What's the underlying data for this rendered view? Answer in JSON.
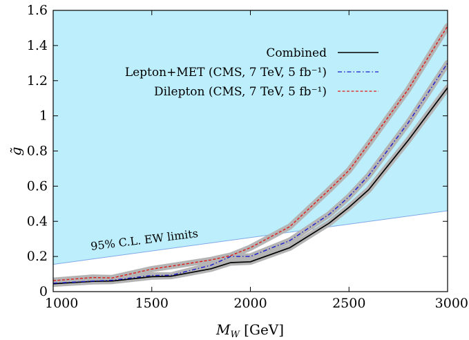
{
  "chart_data": {
    "type": "line",
    "xlabel_italic": "M",
    "xlabel_sub": "W",
    "xlabel_unit": " [GeV]",
    "ylabel": "g̃",
    "xlim": [
      1000,
      3000
    ],
    "ylim": [
      0,
      1.6
    ],
    "x_ticks": [
      1000,
      1500,
      2000,
      2500,
      3000
    ],
    "y_ticks": [
      0,
      0.2,
      0.4,
      0.6,
      0.8,
      1,
      1.2,
      1.4,
      1.6
    ],
    "x_tick_labels": [
      "1000",
      "1500",
      "2000",
      "2500",
      "3000"
    ],
    "y_tick_labels": [
      "0",
      "0.2",
      "0.4",
      "0.6",
      "0.8",
      "1",
      "1.2",
      "1.4",
      "1.6"
    ],
    "grid": false,
    "legend_position": "top-right",
    "excluded_region": {
      "label": "95% C.L. EW limits",
      "boundary_x": [
        1000,
        3000
      ],
      "boundary_y": [
        0.155,
        0.46
      ],
      "color": "#bdeefc"
    },
    "series": [
      {
        "name": "Combined",
        "color": "#000000",
        "dash": "solid",
        "x": [
          1000,
          1200,
          1300,
          1500,
          1600,
          1800,
          1900,
          2000,
          2200,
          2400,
          2500,
          2600,
          2800,
          3000
        ],
        "y": [
          0.045,
          0.058,
          0.06,
          0.085,
          0.088,
          0.13,
          0.165,
          0.17,
          0.25,
          0.39,
          0.48,
          0.58,
          0.86,
          1.16
        ]
      },
      {
        "name": "Lepton+MET (CMS, 7 TeV, 5 fb⁻¹)",
        "color": "#1a1ad0",
        "dash": "dashdot",
        "x": [
          1000,
          1200,
          1300,
          1500,
          1600,
          1800,
          1900,
          2000,
          2200,
          2400,
          2500,
          2600,
          2800,
          3000
        ],
        "y": [
          0.048,
          0.06,
          0.065,
          0.092,
          0.093,
          0.15,
          0.2,
          0.2,
          0.29,
          0.44,
          0.54,
          0.66,
          0.96,
          1.3
        ]
      },
      {
        "name": "Dilepton (CMS, 7 TeV, 5 fb⁻¹)",
        "color": "#e01818",
        "dash": "dashed",
        "x": [
          1000,
          1200,
          1300,
          1500,
          1600,
          1800,
          1900,
          2000,
          2200,
          2400,
          2500,
          2600,
          2800,
          3000
        ],
        "y": [
          0.062,
          0.08,
          0.078,
          0.128,
          0.145,
          0.18,
          0.205,
          0.25,
          0.37,
          0.58,
          0.69,
          0.84,
          1.15,
          1.51
        ]
      }
    ]
  }
}
